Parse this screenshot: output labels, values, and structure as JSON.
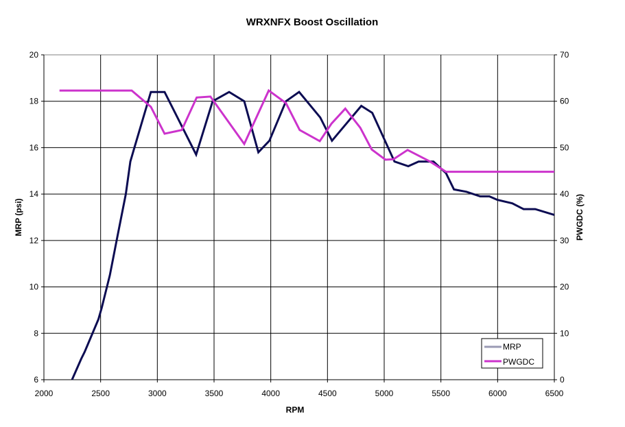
{
  "chart_data": {
    "type": "line",
    "title": "WRXNFX Boost Oscillation",
    "xlabel": "RPM",
    "ylabel": "MRP (psi)",
    "y2label": "PWGDC (%)",
    "xlim": [
      2000,
      6500
    ],
    "ylim": [
      6,
      20
    ],
    "y2lim": [
      0,
      70
    ],
    "x_ticks": [
      2000,
      2500,
      3000,
      3500,
      4000,
      4500,
      5000,
      5500,
      6000,
      6500
    ],
    "y_ticks": [
      6,
      8,
      10,
      12,
      14,
      16,
      18,
      20
    ],
    "y2_ticks": [
      0,
      10,
      20,
      30,
      40,
      50,
      60,
      70
    ],
    "grid": true,
    "legend_position": "bottom-right inside plot",
    "series": [
      {
        "name": "MRP",
        "axis": "left",
        "color": "#0c0c52",
        "legend_color": "#9a9ab4",
        "points": [
          [
            2248,
            6.0
          ],
          [
            2329,
            6.9
          ],
          [
            2359,
            7.2
          ],
          [
            2480,
            8.6
          ],
          [
            2510,
            9.1
          ],
          [
            2581,
            10.5
          ],
          [
            2641,
            12.0
          ],
          [
            2722,
            14.0
          ],
          [
            2762,
            15.4
          ],
          [
            2792,
            15.9
          ],
          [
            2943,
            18.4
          ],
          [
            3064,
            18.4
          ],
          [
            3342,
            15.7
          ],
          [
            3488,
            18.0
          ],
          [
            3633,
            18.4
          ],
          [
            3766,
            18.0
          ],
          [
            3891,
            15.8
          ],
          [
            3988,
            16.3
          ],
          [
            4134,
            18.0
          ],
          [
            4250,
            18.4
          ],
          [
            4436,
            17.3
          ],
          [
            4540,
            16.3
          ],
          [
            4798,
            17.8
          ],
          [
            4895,
            17.5
          ],
          [
            5091,
            15.4
          ],
          [
            5212,
            15.2
          ],
          [
            5303,
            15.4
          ],
          [
            5434,
            15.4
          ],
          [
            5545,
            14.9
          ],
          [
            5615,
            14.2
          ],
          [
            5725,
            14.1
          ],
          [
            5847,
            13.9
          ],
          [
            5927,
            13.9
          ],
          [
            5998,
            13.75
          ],
          [
            6129,
            13.6
          ],
          [
            6229,
            13.35
          ],
          [
            6331,
            13.35
          ],
          [
            6500,
            13.1
          ]
        ]
      },
      {
        "name": "PWGDC",
        "axis": "right",
        "color": "#cc33cc",
        "legend_color": "#cc33cc",
        "points": [
          [
            2137,
            62.3
          ],
          [
            2774,
            62.3
          ],
          [
            2943,
            58.8
          ],
          [
            3064,
            53.0
          ],
          [
            3215,
            53.8
          ],
          [
            3347,
            60.8
          ],
          [
            3468,
            61.0
          ],
          [
            3766,
            50.8
          ],
          [
            3982,
            62.3
          ],
          [
            4134,
            59.6
          ],
          [
            4255,
            53.8
          ],
          [
            4432,
            51.4
          ],
          [
            4536,
            55.2
          ],
          [
            4657,
            58.4
          ],
          [
            4789,
            54.3
          ],
          [
            4890,
            49.6
          ],
          [
            5011,
            47.4
          ],
          [
            5081,
            47.5
          ],
          [
            5206,
            49.5
          ],
          [
            5404,
            47.0
          ],
          [
            5545,
            44.8
          ],
          [
            6500,
            44.8
          ]
        ]
      }
    ]
  },
  "colors": {
    "grid": "#000000",
    "axis": "#000000",
    "top_border": "#808080",
    "legend_border": "#000000"
  }
}
